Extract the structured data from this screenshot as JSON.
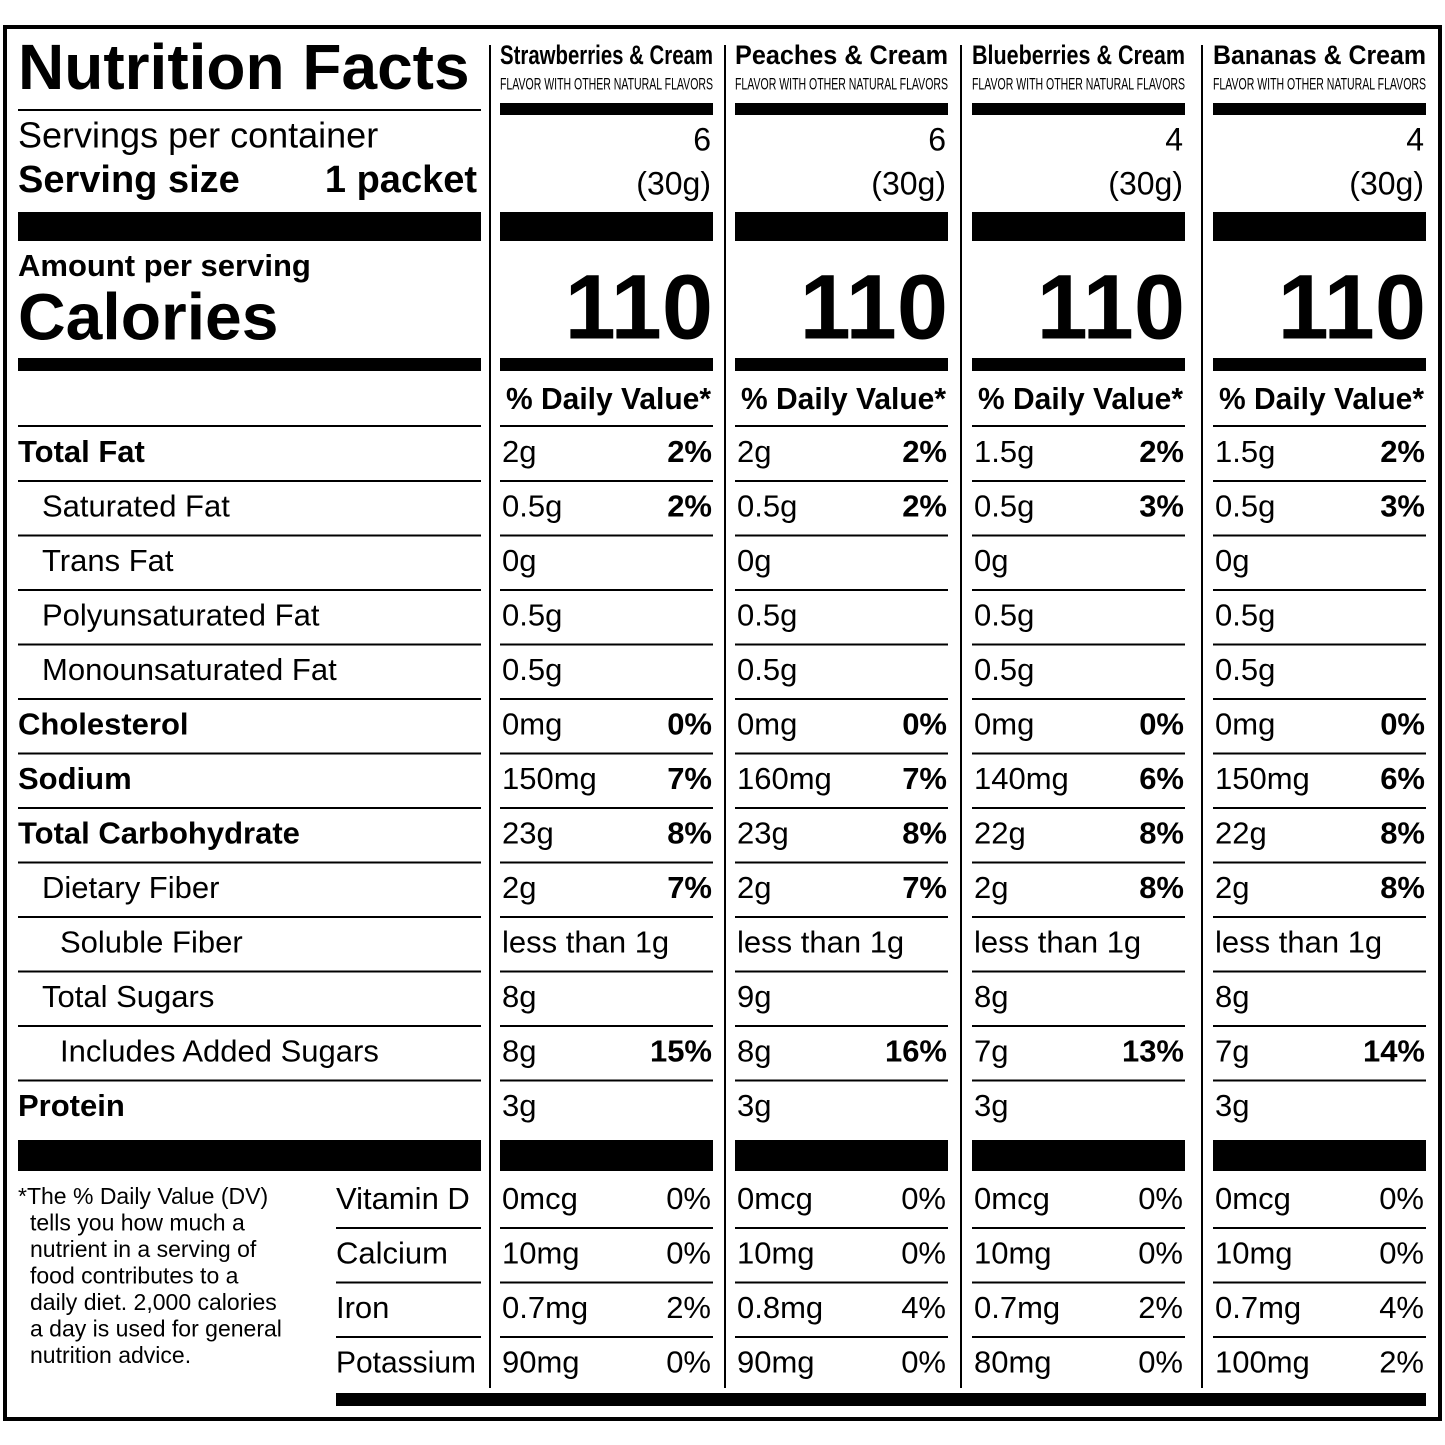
{
  "title": "Nutrition Facts",
  "servings_label": "Servings per container",
  "serving_size_label": "Serving size",
  "serving_size_value": "1 packet",
  "amount_label": "Amount per serving",
  "calories_label": "Calories",
  "nutrient_labels": [
    "Total Fat",
    "Saturated Fat",
    "Trans Fat",
    "Polyunsaturated Fat",
    "Monounsaturated Fat",
    "Cholesterol",
    "Sodium",
    "Total Carbohydrate",
    "Dietary Fiber",
    "Soluble Fiber",
    "Total Sugars",
    "Includes Added Sugars",
    "Protein"
  ],
  "vitamin_labels": [
    "Vitamin D",
    "Calcium",
    "Iron",
    "Potassium"
  ],
  "footnote": [
    "*The % Daily Value (DV)",
    "tells you how much a",
    "nutrient in a serving of",
    "food contributes to a",
    "daily diet. 2,000 calories",
    "a day is used for general",
    "nutrition advice."
  ],
  "columns": [
    {
      "name": "Strawberries & Cream",
      "flavor": "FLAVOR WITH OTHER NATURAL FLAVORS",
      "servings": 6,
      "serving_size": "(30g)",
      "calories": 110,
      "dv_header": "% Daily Value*",
      "nutrients": [
        [
          "2g",
          "2%"
        ],
        [
          "0.5g",
          "2%"
        ],
        [
          "0g"
        ],
        [
          "0.5g"
        ],
        [
          "0.5g"
        ],
        [
          "0mg",
          "0%"
        ],
        [
          "150mg",
          "7%"
        ],
        [
          "23g",
          "8%"
        ],
        [
          "2g",
          "7%"
        ],
        [
          "less than 1g"
        ],
        [
          "8g"
        ],
        [
          "8g",
          "15%"
        ],
        [
          "3g"
        ]
      ],
      "vitamins": [
        [
          "0mcg",
          "0%"
        ],
        [
          "10mg",
          "0%"
        ],
        [
          "0.7mg",
          "2%"
        ],
        [
          "90mg",
          "0%"
        ]
      ]
    },
    {
      "name": "Peaches & Cream",
      "flavor": "FLAVOR WITH OTHER NATURAL FLAVORS",
      "servings": 6,
      "serving_size": "(30g)",
      "calories": 110,
      "dv_header": "% Daily Value*",
      "nutrients": [
        [
          "2g",
          "2%"
        ],
        [
          "0.5g",
          "2%"
        ],
        [
          "0g"
        ],
        [
          "0.5g"
        ],
        [
          "0.5g"
        ],
        [
          "0mg",
          "0%"
        ],
        [
          "160mg",
          "7%"
        ],
        [
          "23g",
          "8%"
        ],
        [
          "2g",
          "7%"
        ],
        [
          "less than 1g"
        ],
        [
          "9g"
        ],
        [
          "8g",
          "16%"
        ],
        [
          "3g"
        ]
      ],
      "vitamins": [
        [
          "0mcg",
          "0%"
        ],
        [
          "10mg",
          "0%"
        ],
        [
          "0.8mg",
          "4%"
        ],
        [
          "90mg",
          "0%"
        ]
      ]
    },
    {
      "name": "Blueberries & Cream",
      "flavor": "FLAVOR WITH OTHER NATURAL FLAVORS",
      "servings": 4,
      "serving_size": "(30g)",
      "calories": 110,
      "dv_header": "% Daily Value*",
      "nutrients": [
        [
          "1.5g",
          "2%"
        ],
        [
          "0.5g",
          "3%"
        ],
        [
          "0g"
        ],
        [
          "0.5g"
        ],
        [
          "0.5g"
        ],
        [
          "0mg",
          "0%"
        ],
        [
          "140mg",
          "6%"
        ],
        [
          "22g",
          "8%"
        ],
        [
          "2g",
          "8%"
        ],
        [
          "less than 1g"
        ],
        [
          "8g"
        ],
        [
          "7g",
          "13%"
        ],
        [
          "3g"
        ]
      ],
      "vitamins": [
        [
          "0mcg",
          "0%"
        ],
        [
          "10mg",
          "0%"
        ],
        [
          "0.7mg",
          "2%"
        ],
        [
          "80mg",
          "0%"
        ]
      ]
    },
    {
      "name": "Bananas & Cream",
      "flavor": "FLAVOR WITH OTHER NATURAL FLAVORS",
      "servings": 4,
      "serving_size": "(30g)",
      "calories": 110,
      "dv_header": "% Daily Value*",
      "nutrients": [
        [
          "1.5g",
          "2%"
        ],
        [
          "0.5g",
          "3%"
        ],
        [
          "0g"
        ],
        [
          "0.5g"
        ],
        [
          "0.5g"
        ],
        [
          "0mg",
          "0%"
        ],
        [
          "150mg",
          "6%"
        ],
        [
          "22g",
          "8%"
        ],
        [
          "2g",
          "8%"
        ],
        [
          "less than 1g"
        ],
        [
          "8g"
        ],
        [
          "7g",
          "14%"
        ],
        [
          "3g"
        ]
      ],
      "vitamins": [
        [
          "0mcg",
          "0%"
        ],
        [
          "10mg",
          "0%"
        ],
        [
          "0.7mg",
          "4%"
        ],
        [
          "100mg",
          "2%"
        ]
      ]
    }
  ]
}
